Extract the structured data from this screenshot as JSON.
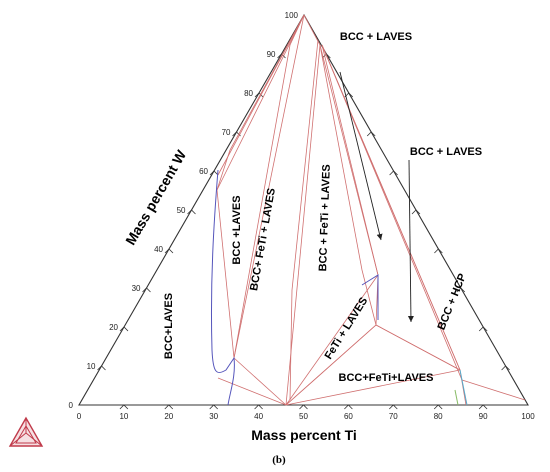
{
  "diagram": {
    "caption": "(b)",
    "x_axis_title": "Mass percent Ti",
    "y_axis_title": "Mass percent W",
    "bottom_ticks": [
      "0",
      "10",
      "20",
      "30",
      "40",
      "50",
      "60",
      "70",
      "80",
      "90",
      "100"
    ],
    "left_ticks": [
      "0",
      "10",
      "20",
      "30",
      "40",
      "50",
      "60",
      "70",
      "80",
      "90",
      "100"
    ],
    "regions": {
      "bcc_laves_left": "BCC+LAVES",
      "bcc_laves_mid": "BCC +LAVES",
      "bcc_feti_laves_1": "BCC+ FeTi + LAVES",
      "bcc_feti_laves_2": "BCC + FeTi + LAVES",
      "bcc_laves_top": "BCC + LAVES",
      "bcc_laves_right": "BCC + LAVES",
      "feti_laves": "FeTi + LAVES",
      "bcc_hcp": "BCC + HCP",
      "bcc_feti_laves_bottom": "BCC+FeTi+LAVES"
    },
    "colors": {
      "frame": "#333333",
      "tie_lines": "#d07070",
      "phase_boundary_blue": "#5555bb",
      "phase_boundary_cyan": "#55aacc",
      "arrow": "#222222",
      "logo": "#c03a4a"
    }
  }
}
